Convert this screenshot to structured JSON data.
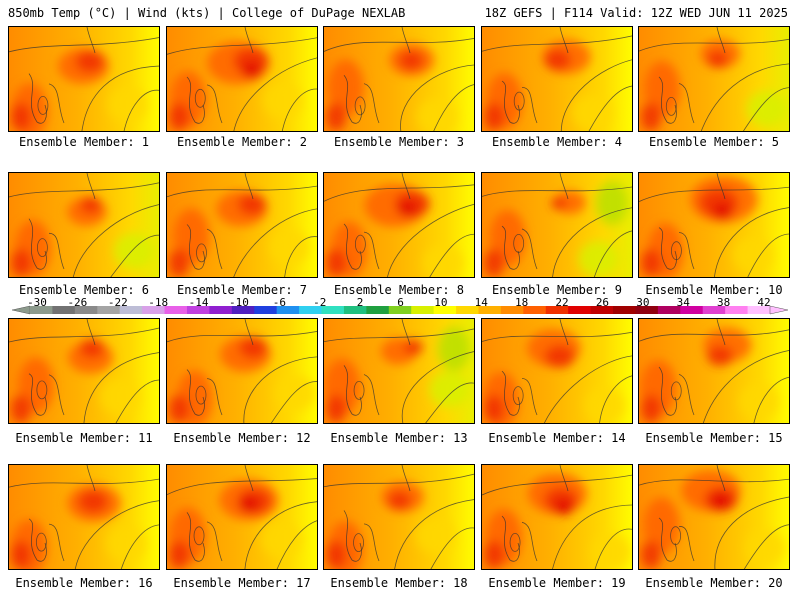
{
  "header": {
    "left_title": "850mb Temp (°C) | Wind (kts) | College of DuPage NEXLAB",
    "right_title": "18Z GEFS | F114 Valid: 12Z WED JUN 11 2025"
  },
  "colorbar": {
    "labels": [
      "-30",
      "-26",
      "-22",
      "-18",
      "-14",
      "-10",
      "-6",
      "-2",
      "2",
      "6",
      "10",
      "14",
      "18",
      "22",
      "26",
      "30",
      "34",
      "38",
      "42"
    ],
    "colors": [
      "#8c9a8c",
      "#727272",
      "#8a8a8a",
      "#a4a4a4",
      "#bdbdd6",
      "#d8a0e8",
      "#e860e8",
      "#c040e0",
      "#9020d0",
      "#5020c0",
      "#2040e0",
      "#2090f0",
      "#30d0f0",
      "#30e0c0",
      "#20c080",
      "#20a040",
      "#80d020",
      "#d8f000",
      "#ffff00",
      "#ffd800",
      "#ffb000",
      "#ff8c00",
      "#ff6000",
      "#f03000",
      "#e00000",
      "#c00000",
      "#a00000",
      "#900010",
      "#b00060",
      "#d000a0",
      "#e040d0",
      "#ff80f0",
      "#ffc0ff"
    ]
  },
  "members": [
    {
      "label": "Ensemble Member: 1",
      "shade": 0.55
    },
    {
      "label": "Ensemble Member: 2",
      "shade": 0.75
    },
    {
      "label": "Ensemble Member: 3",
      "shade": 0.45
    },
    {
      "label": "Ensemble Member: 4",
      "shade": 0.5
    },
    {
      "label": "Ensemble Member: 5",
      "shade": 0.35
    },
    {
      "label": "Ensemble Member: 6",
      "shade": 0.35
    },
    {
      "label": "Ensemble Member: 7",
      "shade": 0.55
    },
    {
      "label": "Ensemble Member: 8",
      "shade": 0.75
    },
    {
      "label": "Ensemble Member: 9",
      "shade": 0.2
    },
    {
      "label": "Ensemble Member: 10",
      "shade": 0.85
    },
    {
      "label": "Ensemble Member: 11",
      "shade": 0.45
    },
    {
      "label": "Ensemble Member: 12",
      "shade": 0.55
    },
    {
      "label": "Ensemble Member: 13",
      "shade": 0.3
    },
    {
      "label": "Ensemble Member: 14",
      "shade": 0.6
    },
    {
      "label": "Ensemble Member: 15",
      "shade": 0.5
    },
    {
      "label": "Ensemble Member: 16",
      "shade": 0.6
    },
    {
      "label": "Ensemble Member: 17",
      "shade": 0.7
    },
    {
      "label": "Ensemble Member: 18",
      "shade": 0.4
    },
    {
      "label": "Ensemble Member: 19",
      "shade": 0.7
    },
    {
      "label": "Ensemble Member: 20",
      "shade": 0.7
    }
  ]
}
